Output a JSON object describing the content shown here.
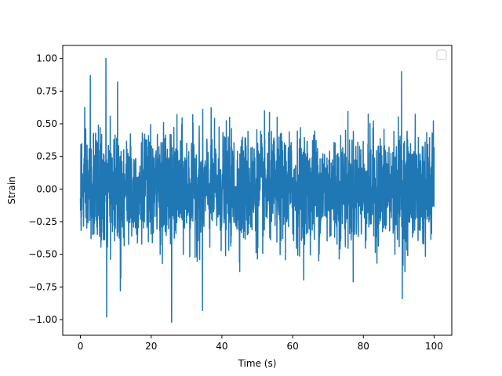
{
  "chart_data": {
    "type": "line",
    "title": "",
    "xlabel": "Time (s)",
    "ylabel": "Strain",
    "xlim": [
      -5,
      105
    ],
    "ylim": [
      -1.12,
      1.1
    ],
    "xticks": [
      0,
      20,
      40,
      60,
      80,
      100
    ],
    "xtick_labels": [
      "0",
      "20",
      "40",
      "60",
      "80",
      "100"
    ],
    "yticks": [
      -1.0,
      -0.75,
      -0.5,
      -0.25,
      0.0,
      0.25,
      0.5,
      0.75,
      1.0
    ],
    "ytick_labels": [
      "−1.00",
      "−0.75",
      "−0.50",
      "−0.25",
      "0.00",
      "0.25",
      "0.50",
      "0.75",
      "1.00"
    ],
    "grid": false,
    "legend": {
      "placement": "upper right",
      "entries": []
    },
    "series": [
      {
        "color": "#1f77b4",
        "x_range": [
          0,
          100
        ],
        "description_values": {
          "typical_envelope": [
            -0.5,
            0.5
          ],
          "peaks": [
            {
              "x": 2.8,
              "y": 0.87
            },
            {
              "x": 7.2,
              "y": 1.0
            },
            {
              "x": 7.4,
              "y": -0.98
            },
            {
              "x": 10.5,
              "y": 0.82
            },
            {
              "x": 11.3,
              "y": -0.78
            },
            {
              "x": 25.8,
              "y": -1.02
            },
            {
              "x": 34.5,
              "y": -0.93
            },
            {
              "x": 90.8,
              "y": 0.9
            },
            {
              "x": 91.0,
              "y": -0.84
            }
          ]
        }
      }
    ]
  }
}
